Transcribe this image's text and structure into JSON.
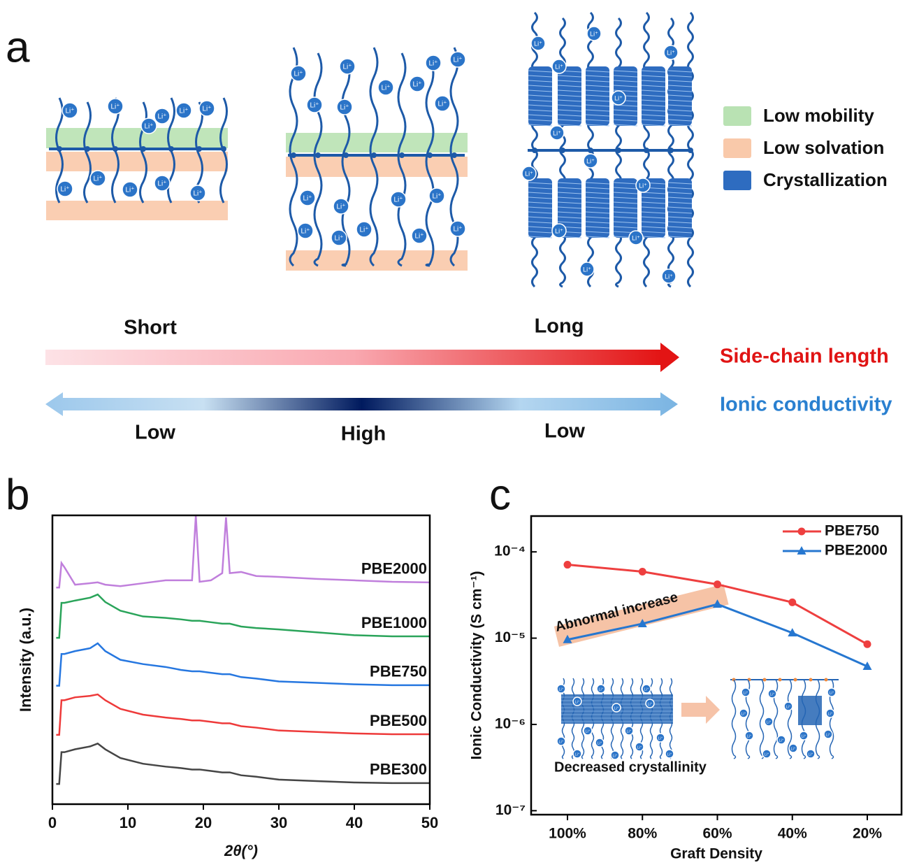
{
  "panel_labels": [
    "a",
    "b",
    "c"
  ],
  "diagram": {
    "ion_label": "Li⁺",
    "legend": [
      {
        "label": "Low mobility",
        "color": "#b9e2b3"
      },
      {
        "label": "Low solvation",
        "color": "#f9c9aa"
      },
      {
        "label": "Crystallization",
        "color": "#2e6cc0"
      }
    ],
    "length_axis": {
      "label": "Side-chain length",
      "start": "Short",
      "end": "Long"
    },
    "conductivity_axis": {
      "label": "Ionic conductivity",
      "left": "Low",
      "middle": "High",
      "right": "Low"
    }
  },
  "chart_data": [
    {
      "type": "line",
      "x_label": "2θ(°)",
      "y_label": "Intensity (a.u.)",
      "x": [
        0.5,
        0.9,
        1.2,
        1.6,
        3,
        5,
        6,
        7,
        9,
        12,
        15,
        17,
        18.5,
        19,
        19.5,
        21,
        22.5,
        23,
        23.5,
        25,
        27,
        30,
        35,
        40,
        45,
        50
      ],
      "xlim": [
        0,
        50
      ],
      "xticks": [
        0,
        10,
        20,
        30,
        40,
        50
      ],
      "ylim": [
        0,
        100
      ],
      "series": [
        {
          "name": "PBE300",
          "color": "#454545",
          "values": [
            7,
            7,
            18,
            18,
            19,
            20,
            21,
            19,
            16,
            14,
            13,
            12.5,
            12,
            12,
            12,
            11.5,
            11,
            11,
            11,
            10,
            9.5,
            8.5,
            8,
            7.5,
            7.3,
            7.3
          ]
        },
        {
          "name": "PBE500",
          "color": "#ee3a3a",
          "values": [
            24,
            24,
            36,
            36,
            37,
            37.5,
            38,
            36,
            33,
            31,
            30,
            29.5,
            29,
            29,
            29,
            28.5,
            28,
            28,
            28,
            27,
            26.5,
            25.5,
            25,
            24.5,
            24.2,
            24.2
          ]
        },
        {
          "name": "PBE750",
          "color": "#2677e0",
          "values": [
            41,
            41,
            52,
            52,
            53,
            54,
            55.7,
            53,
            50,
            48.5,
            47.5,
            46.5,
            46,
            46,
            46,
            45.5,
            45,
            45,
            45,
            44,
            43.5,
            42.5,
            42,
            41.5,
            41.2,
            41.2
          ]
        },
        {
          "name": "PBE1000",
          "color": "#2aa45a",
          "values": [
            57.6,
            57.6,
            69.7,
            69.7,
            70.5,
            71.5,
            72.6,
            70,
            67,
            65,
            64.5,
            64,
            63.5,
            63.5,
            63.5,
            63,
            62.5,
            62.5,
            62.5,
            61.5,
            61,
            60.5,
            59.5,
            58.5,
            58.1,
            58.1
          ]
        },
        {
          "name": "PBE2000",
          "color": "#c07fdc",
          "values": [
            75,
            75,
            83.5,
            82,
            76,
            76.5,
            76.8,
            76,
            75.5,
            76.5,
            77.5,
            77.5,
            77.5,
            100,
            77,
            77.5,
            80,
            99.3,
            80,
            80.4,
            79,
            78.7,
            78,
            77.5,
            77,
            76.8
          ]
        }
      ]
    },
    {
      "type": "line",
      "x_label": "Graft Density",
      "y_label": "Ionic Conductivity (S cm⁻¹)",
      "categories": [
        "100%",
        "80%",
        "60%",
        "40%",
        "20%"
      ],
      "log_scale": true,
      "ylim": [
        9e-08,
        0.00026
      ],
      "yticks": [
        {
          "value": 1e-07,
          "label": "10⁻⁷"
        },
        {
          "value": 1e-06,
          "label": "10⁻⁶"
        },
        {
          "value": 1e-05,
          "label": "10⁻⁵"
        },
        {
          "value": 0.0001,
          "label": "10⁻⁴"
        }
      ],
      "legend": "upper right",
      "series": [
        {
          "name": "PBE750",
          "color": "#ee3f3f",
          "marker": "circle",
          "values": [
            7.1e-05,
            5.9e-05,
            4.2e-05,
            2.6e-05,
            8.5e-06
          ]
        },
        {
          "name": "PBE2000",
          "color": "#2677d0",
          "marker": "triangle",
          "values": [
            9.6e-06,
            1.47e-05,
            2.47e-05,
            1.15e-05,
            4.7e-06
          ]
        }
      ],
      "annotations": [
        "Abnormal increase",
        "Decreased crystallinity"
      ]
    }
  ]
}
